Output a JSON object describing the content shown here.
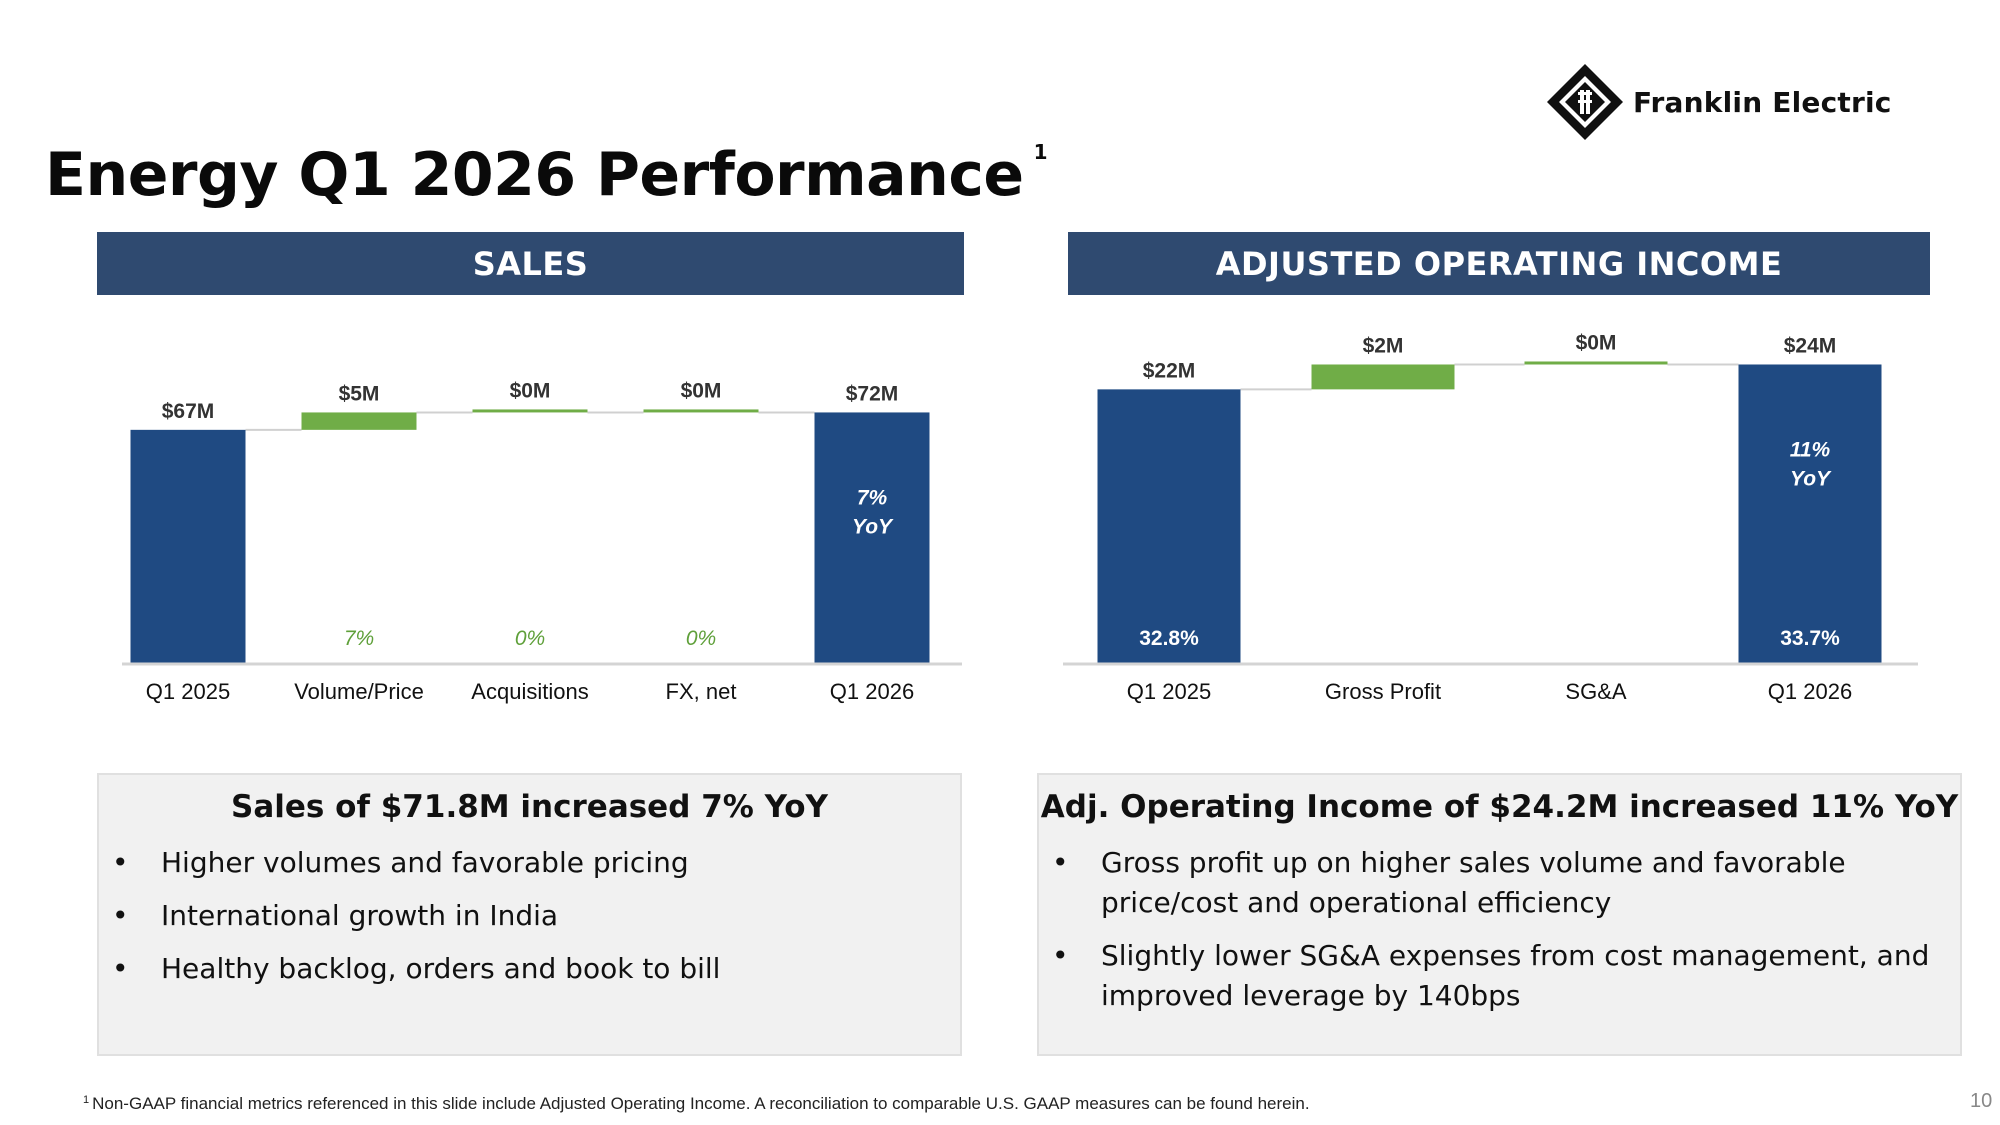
{
  "logo": {
    "text": "Franklin Electric",
    "icon": "franklin-electric-diamond-logo"
  },
  "title": {
    "text": "Energy Q1 2026 Performance",
    "superscript": "1"
  },
  "colors": {
    "navy": "#1f4a82",
    "band": "#2f4a70",
    "green": "#70ad47",
    "green_text": "#5fa03a"
  },
  "chart_data": [
    {
      "type": "bar",
      "header": "SALES",
      "categories": [
        "Q1 2025",
        "Volume/Price",
        "Acquisitions",
        "FX, net",
        "Q1 2026"
      ],
      "values": [
        67,
        5,
        0,
        0,
        72
      ],
      "bar_kinds": [
        "total",
        "delta",
        "delta",
        "delta",
        "total"
      ],
      "value_labels": [
        "$67M",
        "$5M",
        "$0M",
        "$0M",
        "$72M"
      ],
      "pct_labels": [
        "",
        "7%",
        "0%",
        "0%",
        ""
      ],
      "inside_labels": [
        "",
        "",
        "",
        "",
        "7%"
      ],
      "inside_labels2": [
        "",
        "",
        "",
        "",
        "YoY"
      ],
      "bottom_labels": [
        "",
        "",
        "",
        "",
        ""
      ],
      "ylim": [
        0,
        75
      ]
    },
    {
      "type": "bar",
      "header": "ADJUSTED OPERATING INCOME",
      "categories": [
        "Q1 2025",
        "Gross Profit",
        "SG&A",
        "Q1 2026"
      ],
      "values": [
        22,
        2,
        0,
        24
      ],
      "bar_kinds": [
        "total",
        "delta",
        "delta",
        "total"
      ],
      "value_labels": [
        "$22M",
        "$2M",
        "$0M",
        "$24M"
      ],
      "pct_labels": [
        "",
        "",
        "",
        ""
      ],
      "inside_labels": [
        "",
        "",
        "",
        "11%"
      ],
      "inside_labels2": [
        "",
        "",
        "",
        "YoY"
      ],
      "bottom_labels": [
        "32.8%",
        "",
        "",
        "33.7%"
      ],
      "ylim": [
        0,
        24.2
      ]
    }
  ],
  "summary_left": {
    "heading": "Sales of $71.8M increased 7% YoY",
    "bullets": [
      "Higher volumes and favorable pricing",
      "International growth in India",
      "Healthy backlog, orders and book to bill"
    ]
  },
  "summary_right": {
    "heading": "Adj. Operating Income of $24.2M increased 11% YoY",
    "bullets": [
      "Gross profit up on higher sales volume and favorable price/cost and operational efficiency",
      "Slightly lower SG&A expenses from cost management, and improved leverage by 140bps"
    ]
  },
  "bullet_char": "•",
  "footnote": {
    "marker": "1",
    "text": "Non-GAAP financial metrics referenced in this slide include Adjusted Operating Income. A reconciliation to comparable U.S. GAAP measures can be found herein."
  },
  "page_number": "10"
}
